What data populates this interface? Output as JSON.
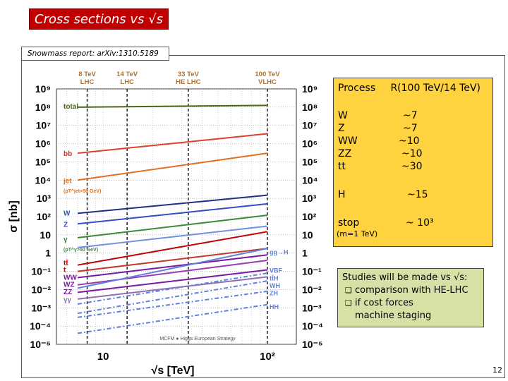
{
  "header": {
    "title": "Cross sections vs √s",
    "reference": "Snowmass report: arXiv:1310.5189"
  },
  "chart_data": {
    "type": "line",
    "xlabel": "√s [TeV]",
    "ylabel": "σ [nb]",
    "x_scale": "log",
    "y_scale": "log",
    "xlim": [
      5.2,
      150
    ],
    "ylim": [
      1e-05,
      1000000000.0
    ],
    "x_ticks": [
      {
        "value": 10,
        "label": "10"
      },
      {
        "value": 100,
        "label": "10²"
      }
    ],
    "y_ticks": [
      {
        "value": 1000000000.0,
        "label": "10⁹"
      },
      {
        "value": 100000000.0,
        "label": "10⁸"
      },
      {
        "value": 10000000.0,
        "label": "10⁷"
      },
      {
        "value": 1000000.0,
        "label": "10⁶"
      },
      {
        "value": 100000.0,
        "label": "10⁵"
      },
      {
        "value": 10000.0,
        "label": "10⁴"
      },
      {
        "value": 1000.0,
        "label": "10³"
      },
      {
        "value": 100,
        "label": "10²"
      },
      {
        "value": 10,
        "label": "10"
      },
      {
        "value": 1,
        "label": "1"
      },
      {
        "value": 0.1,
        "label": "10⁻¹"
      },
      {
        "value": 0.01,
        "label": "10⁻²"
      },
      {
        "value": 0.001,
        "label": "10⁻³"
      },
      {
        "value": 0.0001,
        "label": "10⁻⁴"
      },
      {
        "value": 1e-05,
        "label": "10⁻⁵"
      }
    ],
    "energy_markers": [
      {
        "x": 8,
        "label1": "8 TeV",
        "label2": "LHC"
      },
      {
        "x": 14,
        "label1": "14 TeV",
        "label2": "LHC"
      },
      {
        "x": 33,
        "label1": "33 TeV",
        "label2": "HE LHC"
      },
      {
        "x": 100,
        "label1": "100 TeV",
        "label2": "VLHC"
      }
    ],
    "footer": "MCFM ● Higgs European Strategy",
    "left_labels": [
      {
        "text": "total",
        "y": 120000000.0,
        "color": "#4a6a10"
      },
      {
        "text": "bb",
        "y": 300000.0,
        "color": "#c0392b"
      },
      {
        "text": "jet",
        "y": 10000.0,
        "color": "#e07020"
      },
      {
        "text": "(pT^jet>50 GeV)",
        "y": 3000,
        "color": "#e07020"
      },
      {
        "text": "W",
        "y": 160,
        "color": "#3050c0"
      },
      {
        "text": "Z",
        "y": 40,
        "color": "#3050c0"
      },
      {
        "text": "γ",
        "y": 6,
        "color": "#3a8a3a"
      },
      {
        "text": "(pT^γ>50 GeV)",
        "y": 1.8,
        "color": "#3a8a3a"
      },
      {
        "text": "tt̄",
        "y": 0.3,
        "color": "#c00000"
      },
      {
        "text": "t",
        "y": 0.13,
        "color": "#c00000"
      },
      {
        "text": "WW",
        "y": 0.05,
        "color": "#7a1aa0"
      },
      {
        "text": "WZ",
        "y": 0.02,
        "color": "#7a1aa0"
      },
      {
        "text": "ZZ",
        "y": 0.008,
        "color": "#7a1aa0"
      },
      {
        "text": "γγ",
        "y": 0.003,
        "color": "#9070b0"
      }
    ],
    "right_labels": [
      {
        "text": "gg→H",
        "y": 1.2,
        "color": "#6080e0"
      },
      {
        "text": "VBF",
        "y": 0.12,
        "color": "#6080e0"
      },
      {
        "text": "tt̄H",
        "y": 0.045,
        "color": "#6080e0"
      },
      {
        "text": "WH",
        "y": 0.018,
        "color": "#6080e0"
      },
      {
        "text": "ZH",
        "y": 0.007,
        "color": "#6080e0"
      },
      {
        "text": "HH",
        "y": 0.0012,
        "color": "#6080e0"
      }
    ],
    "series": [
      {
        "x": [
          7,
          100
        ],
        "y": [
          100000000.0,
          125000000.0
        ],
        "color": "#4a6a10",
        "dash": false
      },
      {
        "x": [
          7,
          100
        ],
        "y": [
          300000.0,
          3500000.0
        ],
        "color": "#e0402a",
        "dash": false
      },
      {
        "x": [
          7,
          100
        ],
        "y": [
          10000.0,
          300000.0
        ],
        "color": "#e07020",
        "dash": false
      },
      {
        "x": [
          7,
          100
        ],
        "y": [
          150,
          1500
        ],
        "color": "#203080",
        "dash": false
      },
      {
        "x": [
          7,
          100
        ],
        "y": [
          40,
          500
        ],
        "color": "#3050c0",
        "dash": false
      },
      {
        "x": [
          7,
          100
        ],
        "y": [
          7,
          120
        ],
        "color": "#3a8a3a",
        "dash": false
      },
      {
        "x": [
          7,
          100
        ],
        "y": [
          2,
          30
        ],
        "color": "#7090e0",
        "dash": false
      },
      {
        "x": [
          7,
          100
        ],
        "y": [
          0.22,
          15
        ],
        "color": "#c00000",
        "dash": false
      },
      {
        "x": [
          7,
          100
        ],
        "y": [
          0.1,
          1.8
        ],
        "color": "#c0392b",
        "dash": false
      },
      {
        "x": [
          7,
          100
        ],
        "y": [
          0.045,
          0.8
        ],
        "color": "#7a1aa0",
        "dash": false
      },
      {
        "x": [
          7,
          100
        ],
        "y": [
          0.018,
          0.4
        ],
        "color": "#9a3ab0",
        "dash": false
      },
      {
        "x": [
          7,
          100
        ],
        "y": [
          0.007,
          0.12
        ],
        "color": "#7a1aa0",
        "dash": false
      },
      {
        "x": [
          7,
          100
        ],
        "y": [
          0.003,
          0.05
        ],
        "color": "#9070b0",
        "dash": false
      },
      {
        "x": [
          7,
          100
        ],
        "y": [
          0.012,
          1.8
        ],
        "color": "#6080e0",
        "dash": false
      },
      {
        "x": [
          7,
          100
        ],
        "y": [
          0.0016,
          0.08
        ],
        "color": "#6080e0",
        "dash": true
      },
      {
        "x": [
          7,
          100
        ],
        "y": [
          0.0005,
          0.03
        ],
        "color": "#6080e0",
        "dash": true
      },
      {
        "x": [
          7,
          100
        ],
        "y": [
          0.0003,
          0.008
        ],
        "color": "#6080e0",
        "dash": true
      },
      {
        "x": [
          7,
          100
        ],
        "y": [
          4e-05,
          0.0015
        ],
        "color": "#6080e0",
        "dash": true
      }
    ]
  },
  "table": {
    "header_process": "Process",
    "header_ratio": "R(100 TeV/14 TeV)",
    "rows": [
      {
        "process": "W",
        "ratio": "~7"
      },
      {
        "process": "Z",
        "ratio": "~7"
      },
      {
        "process": "WW",
        "ratio": "~10"
      },
      {
        "process": "ZZ",
        "ratio": "~10"
      },
      {
        "process": "tt",
        "ratio": "~30"
      },
      {
        "process": "H",
        "ratio": "~15"
      },
      {
        "process": "stop",
        "ratio": "~ 10³"
      }
    ],
    "stop_note": "(m=1 TeV)"
  },
  "notes": {
    "intro": "Studies will be made vs √s:",
    "items": [
      "comparison with HE-LHC",
      "if cost forces",
      "machine staging"
    ]
  },
  "page_number": "12"
}
